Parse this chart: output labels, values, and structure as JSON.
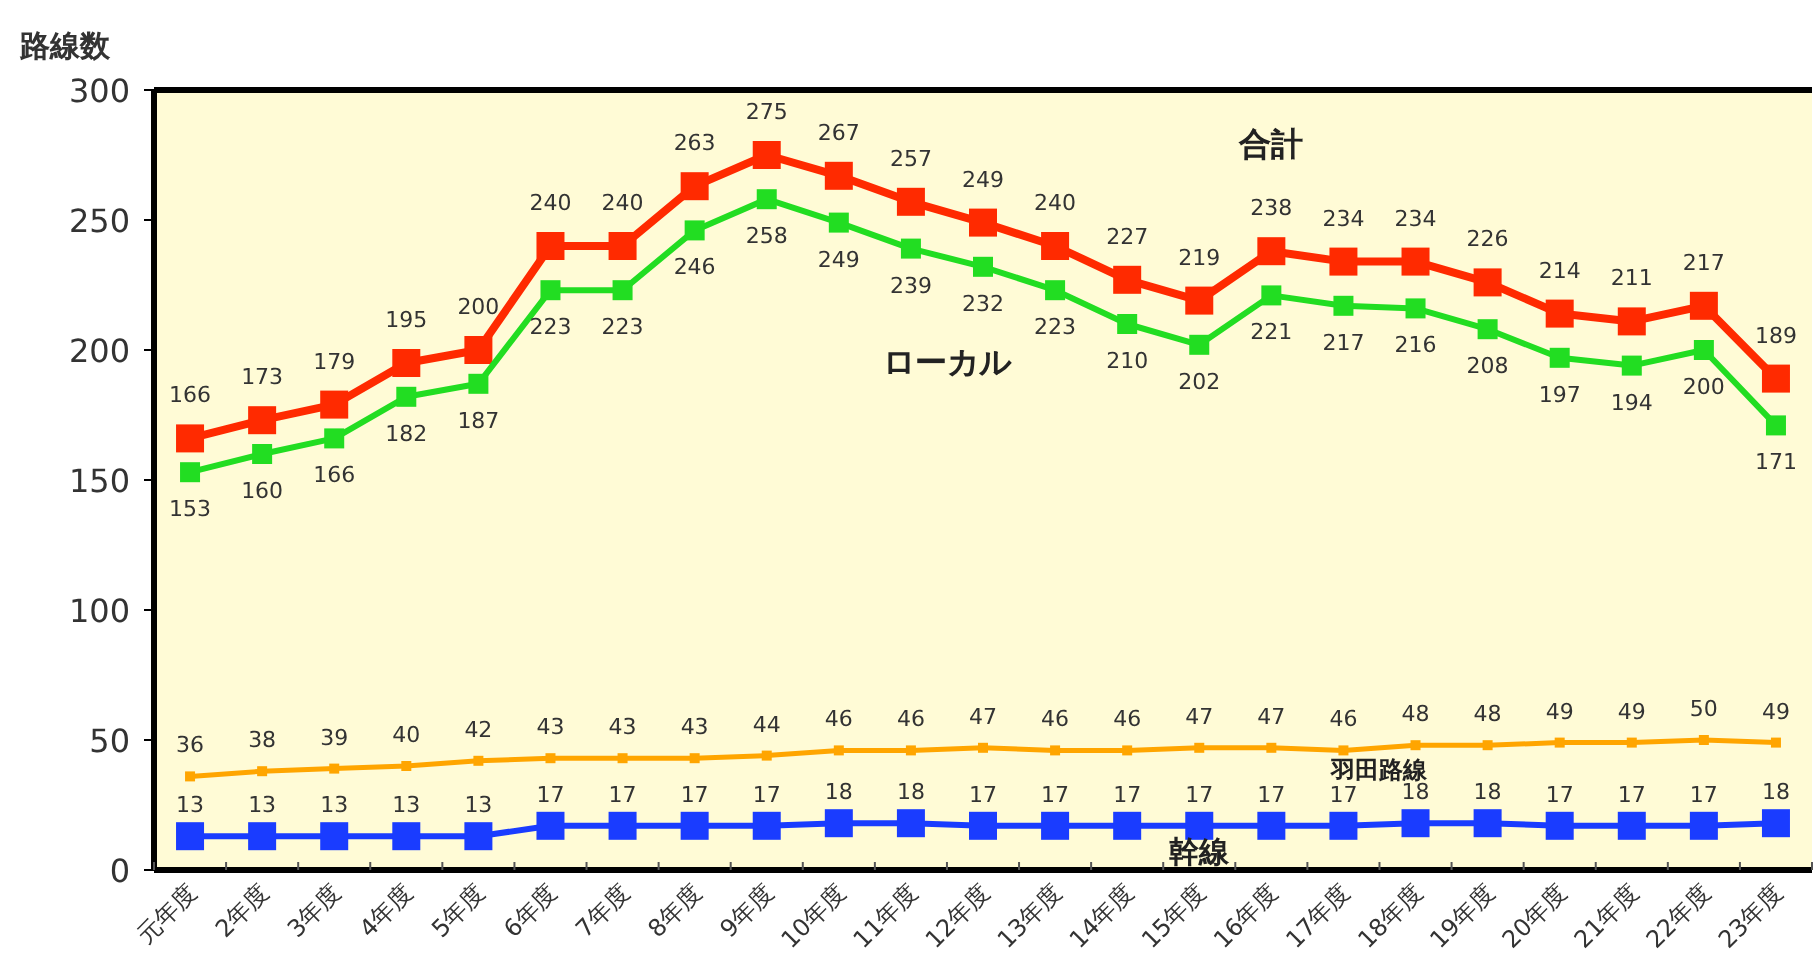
{
  "chart_data": {
    "type": "line",
    "ylabel": "路線数",
    "categories": [
      "元年度",
      "2年度",
      "3年度",
      "4年度",
      "5年度",
      "6年度",
      "7年度",
      "8年度",
      "9年度",
      "10年度",
      "11年度",
      "12年度",
      "13年度",
      "14年度",
      "15年度",
      "16年度",
      "17年度",
      "18年度",
      "19年度",
      "20年度",
      "21年度",
      "22年度",
      "23年度"
    ],
    "series": [
      {
        "name": "合計",
        "color": "#ff2a00",
        "values": [
          166,
          173,
          179,
          195,
          200,
          240,
          240,
          263,
          275,
          267,
          257,
          249,
          240,
          227,
          219,
          238,
          234,
          234,
          226,
          214,
          211,
          217,
          189
        ]
      },
      {
        "name": "ローカル",
        "color": "#22dd22",
        "values": [
          153,
          160,
          166,
          182,
          187,
          223,
          223,
          246,
          258,
          249,
          239,
          232,
          223,
          210,
          202,
          221,
          217,
          216,
          208,
          197,
          194,
          200,
          171
        ]
      },
      {
        "name": "羽田路線",
        "color": "#ffa500",
        "values": [
          36,
          38,
          39,
          40,
          42,
          43,
          43,
          43,
          44,
          46,
          46,
          47,
          46,
          46,
          47,
          47,
          46,
          48,
          48,
          49,
          49,
          50,
          49
        ]
      },
      {
        "name": "幹線",
        "color": "#1a3cff",
        "values": [
          13,
          13,
          13,
          13,
          13,
          17,
          17,
          17,
          17,
          18,
          18,
          17,
          17,
          17,
          17,
          17,
          17,
          18,
          18,
          17,
          17,
          17,
          18
        ]
      }
    ],
    "ylim": [
      0,
      300
    ],
    "yticks": [
      0,
      50,
      100,
      150,
      200,
      250,
      300
    ],
    "data_labels": true,
    "marker": "square"
  }
}
